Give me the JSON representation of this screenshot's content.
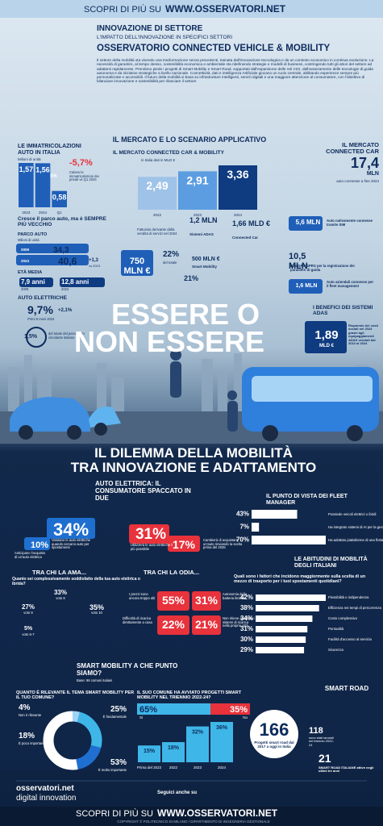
{
  "header": {
    "top_banner_lead": "SCOPRI DI PIÙ SU",
    "top_banner_site": "WWW.OSSERVATORI.NET",
    "section": "INNOVAZIONE DI SETTORE",
    "section_sub": "L'IMPATTO DELL'INNOVAZIONE IN SPECIFICI SETTORI",
    "title": "OSSERVATORIO CONNECTED VEHICLE & MOBILITY",
    "intro": "Il settore della mobilità sta vivendo una trasformazione senza precedenti, trainata dall'innovazione tecnologica e da un contesto economico in continua evoluzione. La necessità di garantire, al tempo stesso, sostenibilità economica e ambientale sta ridefinendo strategie e modelli di business, costringendo tutti gli attori del settore ad adattarsi rapidamente. Prendono piede i progetti di Smart Mobility e Smart Road, supportati dall'espansione delle reti V2X, dall'avanzamento delle tecnologie di guida autonoma e da iniziative strategiche a livello nazionale. Connettività, dati e intelligenza Artificiale giocano un ruolo centrale, abilitando esperienze sempre più personalizzate e accessibili. Il futuro della mobilità si basa su infrastrutture intelligenti, servizi digitali e una maggiore attenzione al consumatore, con l'obiettivo di bilanciare innovazione e sostenibilità per rilanciare il settore"
  },
  "registrations": {
    "type": "bar",
    "title": "LE IMMATRICOLAZIONI AUTO IN ITALIA",
    "unit": "Milioni di unità",
    "categories": [
      "2023",
      "2024",
      "Q1"
    ],
    "values": [
      1.57,
      1.56,
      0.58
    ],
    "value_labels": [
      "1,57",
      "1,56",
      "0,58"
    ],
    "color": "#1f5fb8",
    "delta": "-0,5%",
    "change": "-5,7%",
    "change_note": "Calano le immatricolazioni dei privati vs Q1 2024"
  },
  "market": {
    "type": "bar",
    "section_title": "IL MERCATO E LO SCENARIO APPLICATIVO",
    "title": "IL MERCATO CONNECTED CAR & MOBILITY",
    "unit": "in Italia dati in MLD €",
    "categories": [
      "2022",
      "2023",
      "2024"
    ],
    "values": [
      2.49,
      2.91,
      3.36
    ],
    "value_labels": [
      "2,49",
      "2,91",
      "3,36"
    ],
    "colors": [
      "#9fc3e8",
      "#5b9de0",
      "#0f3b80"
    ]
  },
  "connected": {
    "title": "IL MERCATO CONNECTED CAR",
    "value": "17,4",
    "unit": "MLN",
    "note": "auto connesse a fine 2024"
  },
  "fleet_park": {
    "title": "Cresce il parco auto, ma è SEMPRE PIÙ VECCHIO",
    "sub": "PARCO AUTO",
    "unit": "Milioni di unità",
    "year_a": "2009",
    "value_a": "34,3",
    "year_b": "2024",
    "value_b": "40,6",
    "change": "+1,3",
    "change_vs": "vs 2023",
    "age_title": "ETÀ MEDIA",
    "age_a": "7,9 anni",
    "age_a_year": "2009",
    "age_b": "12,8 anni",
    "age_b_year": "2024"
  },
  "electric": {
    "title": "AUTO ELETTRICHE",
    "value": "9,7%",
    "note": "Primi 6 mesi 2024",
    "change": "+2,1%",
    "share": "1,5%",
    "share_note": "del totale del parco auto circolante italiano"
  },
  "services": {
    "adas_value": "1,2 MLN",
    "adas_label": "Sistemi ADAS",
    "cc_value": "1,66 MLD €",
    "cc_label": "Connected Car",
    "revenue_note": "Fatturato derivante dalla vendita di servizi nel 2024",
    "revenue_value": "750 MLN €",
    "revenue_share": "22%",
    "revenue_share_note": "del totale",
    "sm_value": "500 MLN €",
    "sm_label": "Smart Mobility",
    "sm_share": "21%",
    "sim_value": "5,6 MLN",
    "sim_label": "Auto nativamente connesse tramite SIM",
    "box_value": "10,5 MLN",
    "box_label": "Box GPS/GPRS per la registrazione dei parametri di guida",
    "fleet_value": "1,6 MLN",
    "fleet_label": "Auto aziendali connesse per il fleet management"
  },
  "headline": {
    "line1": "ESSERE O",
    "line2": "NON ESSERE"
  },
  "benefits": {
    "title": "I BENEFICI DEI SISTEMI ADAS",
    "value": "1,89",
    "unit": "MLD €",
    "note": "Risparmio dei costi sociali nel 2024 grazie agli equipaggiamenti ADAS venduti dal 2010 al 2024"
  },
  "dilemma": {
    "line1": "IL DILEMMA DELLA MOBILITÀ",
    "line2": "TRA INNOVAZIONE E ADATTAMENTO"
  },
  "ev": {
    "title": "AUTO ELETTRICA: IL CONSUMATORE SPACCATO IN DUE",
    "a_value": "34%",
    "a_label": "Valutano le auto elettriche quando cercano auto per spostamenti",
    "b_value": "10%",
    "b_label": "Anticipano l'acquisto di un'auto elettrica",
    "c_value": "31%",
    "c_label": "Utilizzerà le auto elettriche il più possibile",
    "d_value": "17%",
    "d_label": "Cambierà di acquistare un'auto rinviando la scelta prima del 2035"
  },
  "love": {
    "title": "TRA CHI LA AMA...",
    "question": "Quanto sei complessivamente soddisfatto della tua auto elettrica o ibrida?",
    "a_value": "33%",
    "a_label": "voto 8",
    "b_value": "27%",
    "b_label": "voto 9",
    "c_value": "35%",
    "c_label": "voto 10",
    "d_value": "5%",
    "d_label": "voto 6-7"
  },
  "hate": {
    "title": "TRA CHI LA ODIA...",
    "a_value": "55%",
    "a_label": "I prezzi sono ancora troppo alti",
    "b_value": "31%",
    "b_label": "Autonomia della batteria limitata",
    "c_value": "22%",
    "c_label": "Difficoltà di ricarica direttamente a casa",
    "d_value": "21%",
    "d_label": "Non ritiene adeguati i sistemi di ricarica nella propria città"
  },
  "fleet_manager": {
    "type": "hbar",
    "title": "IL PUNTO DI VISTA DEI FLEET MANAGER",
    "categories": [
      "Possiede veicoli elettrici o ibridi",
      "Ha integrato sistemi di AI per la gestione della flotta",
      "Ha adottato piattaforme di una flotta connessa"
    ],
    "values": [
      43,
      7,
      70
    ],
    "value_labels": [
      "43%",
      "7%",
      "70%"
    ],
    "color": "#ffffff"
  },
  "habits": {
    "type": "hbar",
    "title": "LE ABITUDINI DI MOBILITÀ DEGLI ITALIANI",
    "question": "Quali sono i fattori che incidono maggiormente sulla scelta di un mezzo di trasporto per i tuoi spostamenti quotidiani?",
    "categories": [
      "Flessibilità e indipendenza",
      "Efficienza nei tempi di percorrenza",
      "Costo complessivo",
      "Puntualità",
      "Facilità d'accesso al servizio",
      "Sicurezza"
    ],
    "values": [
      42,
      38,
      34,
      31,
      30,
      29
    ],
    "value_labels": [
      "42%",
      "38%",
      "34%",
      "31%",
      "30%",
      "29%"
    ],
    "color": "#ffffff"
  },
  "smart": {
    "title": "SMART MOBILITY A CHE PUNTO SIAMO?",
    "sub": "Base: 96 comuni italiani"
  },
  "relevance": {
    "type": "pie",
    "question": "QUANTO È RILEVANTE IL TEMA SMART MOBILITY PER IL TUO COMUNE?",
    "categories": [
      "Non è rilevante",
      "È fondamentale",
      "È poco importante",
      "È molto importante"
    ],
    "values": [
      4,
      25,
      18,
      53
    ],
    "value_labels": [
      "4%",
      "25%",
      "18%",
      "53%"
    ],
    "colors": [
      "#9fd4f5",
      "#3fb6e8",
      "#1f6fd0",
      "#ffffff"
    ]
  },
  "projects": {
    "type": "bar",
    "question": "IL SUO COMUNE HA AVVIATO PROGETTI SMART MOBILITY NEL TRIENNIO 2022-24?",
    "split_categories": [
      "Sì",
      "No"
    ],
    "split_values": [
      65,
      35
    ],
    "split_labels": [
      "65%",
      "35%"
    ],
    "split_colors": [
      "#3fb6e8",
      "#e8323c"
    ],
    "categories": [
      "Prima del 2022",
      "2022",
      "2023",
      "2024"
    ],
    "values": [
      15,
      18,
      32,
      36
    ],
    "value_labels": [
      "15%",
      "18%",
      "32%",
      "36%"
    ],
    "color": "#3fb6e8"
  },
  "roads": {
    "total": "166",
    "total_label": "Progetti smart road dal 2017 a oggi in Italia",
    "title": "SMART ROAD",
    "launched": "118",
    "launched_label": "sono stati lanciati nel triennio 2022-24",
    "active": "21",
    "active_label": "SMART ROAD ITALIANE attive negli ultimi tre anni"
  },
  "footer": {
    "logo": "osservatori.net",
    "logo_sub": "digital innovation",
    "follow": "Seguici anche su",
    "banner_lead": "SCOPRI DI PIÙ SU",
    "banner_site": "WWW.OSSERVATORI.NET",
    "copyright": "COPYRIGHT © POLITECNICO DI MILANO / DIPARTIMENTO DI INGEGNERIA GESTIONALE"
  }
}
